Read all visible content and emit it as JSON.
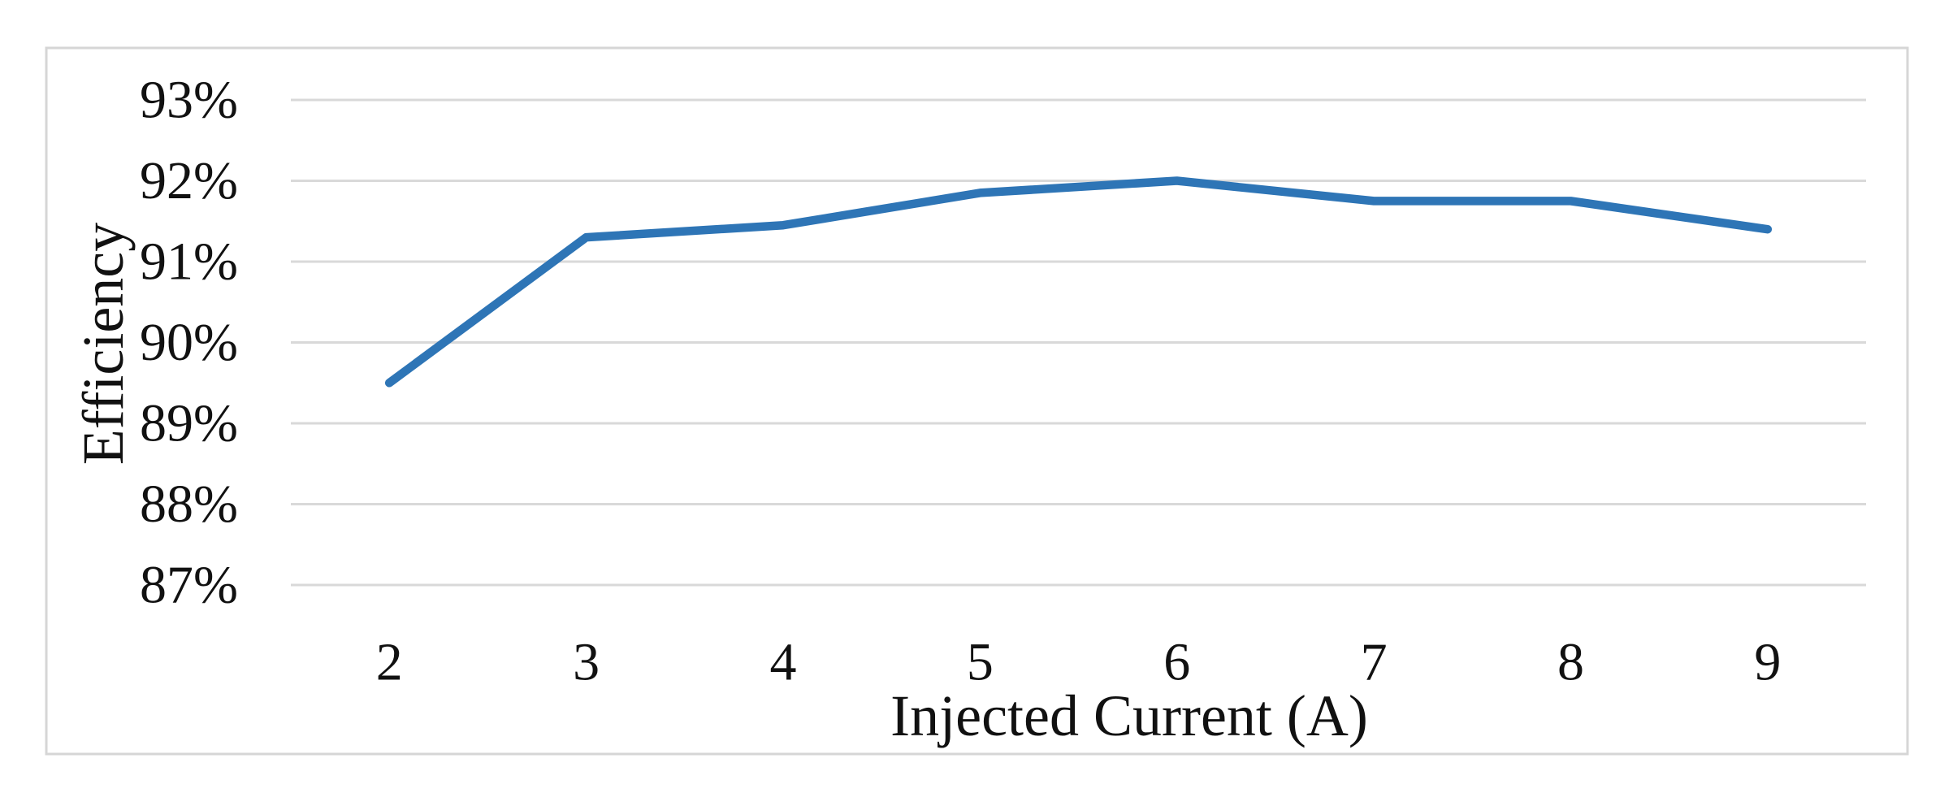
{
  "chart_data": {
    "type": "line",
    "title": "",
    "x": [
      2,
      3,
      4,
      5,
      6,
      7,
      8,
      9
    ],
    "x_tick_labels": [
      "2",
      "3",
      "4",
      "5",
      "6",
      "7",
      "8",
      "9"
    ],
    "series": [
      {
        "name": "Efficiency",
        "values": [
          89.5,
          91.3,
          91.45,
          91.85,
          92.0,
          91.75,
          91.75,
          91.4
        ]
      }
    ],
    "xlabel": "Injected Current (A)",
    "ylabel": "Efficiency",
    "ylim": [
      87,
      93
    ],
    "y_ticks": [
      {
        "value": 93,
        "label": "93%"
      },
      {
        "value": 92,
        "label": "92%"
      },
      {
        "value": 91,
        "label": "91%"
      },
      {
        "value": 90,
        "label": "90%"
      },
      {
        "value": 89,
        "label": "89%"
      },
      {
        "value": 88,
        "label": "88%"
      },
      {
        "value": 87,
        "label": "87%"
      }
    ],
    "grid": "horizontal",
    "legend": "none",
    "colors": {
      "line": "#2E75B6",
      "gridline": "#D9D9D9",
      "frame_border": "#D6D6D6",
      "text": "#111111",
      "background": "#FFFFFF"
    }
  }
}
